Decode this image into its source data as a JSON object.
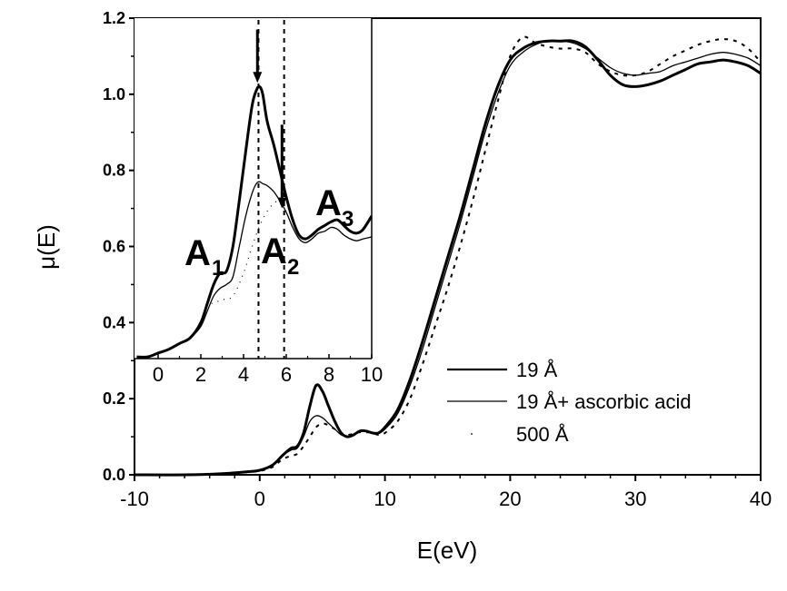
{
  "chart_data": [
    {
      "id": "main",
      "type": "line",
      "title": "",
      "xlabel": "E(eV)",
      "ylabel": "μ(E)",
      "xlim": [
        -10,
        40
      ],
      "ylim": [
        0.0,
        1.2
      ],
      "xticks": [
        -10,
        0,
        10,
        20,
        30,
        40
      ],
      "xtick_labels": [
        "-10",
        "0",
        "10",
        "20",
        "30",
        "40"
      ],
      "yticks": [
        0.0,
        0.2,
        0.4,
        0.6,
        0.8,
        1.0,
        1.2
      ],
      "ytick_labels": [
        "0.0",
        "0.2",
        "0.4",
        "0.6",
        "0.8",
        "1.0",
        "1.2"
      ],
      "grid": false,
      "legend_position": "lower-center-right",
      "series": [
        {
          "name": "19 Å",
          "style": "thick-solid",
          "x": [
            -10,
            -6,
            -3,
            -1,
            0,
            1,
            1.8,
            2.5,
            3.0,
            3.5,
            4.0,
            4.5,
            5.0,
            5.5,
            6.0,
            6.5,
            7.0,
            7.5,
            8.0,
            8.5,
            9.0,
            9.5,
            10,
            11,
            12,
            13,
            14,
            15,
            16,
            17,
            18,
            19,
            20,
            21,
            22,
            23,
            24,
            25,
            26,
            27,
            28,
            29,
            30,
            31,
            32,
            33,
            34,
            35,
            36,
            37,
            38,
            39,
            40
          ],
          "y": [
            0.0,
            0.0,
            0.003,
            0.008,
            0.012,
            0.025,
            0.05,
            0.07,
            0.075,
            0.11,
            0.18,
            0.235,
            0.22,
            0.18,
            0.14,
            0.11,
            0.1,
            0.105,
            0.115,
            0.115,
            0.11,
            0.11,
            0.125,
            0.17,
            0.25,
            0.35,
            0.46,
            0.57,
            0.68,
            0.8,
            0.92,
            1.02,
            1.09,
            1.12,
            1.135,
            1.14,
            1.14,
            1.14,
            1.125,
            1.09,
            1.05,
            1.025,
            1.02,
            1.025,
            1.035,
            1.05,
            1.065,
            1.08,
            1.085,
            1.09,
            1.085,
            1.075,
            1.055
          ]
        },
        {
          "name": "19 Å+ ascorbic acid",
          "style": "thin-solid",
          "x": [
            -10,
            -6,
            -3,
            -1,
            0,
            1,
            1.8,
            2.5,
            3.0,
            3.5,
            4.0,
            4.5,
            5.0,
            5.5,
            6.0,
            6.5,
            7.0,
            7.5,
            8.0,
            8.5,
            9.0,
            9.5,
            10,
            11,
            12,
            13,
            14,
            15,
            16,
            17,
            18,
            19,
            20,
            21,
            22,
            23,
            24,
            25,
            26,
            27,
            28,
            29,
            30,
            31,
            32,
            33,
            34,
            35,
            36,
            37,
            38,
            39,
            40
          ],
          "y": [
            0.0,
            0.0,
            0.003,
            0.008,
            0.012,
            0.025,
            0.05,
            0.065,
            0.07,
            0.1,
            0.14,
            0.155,
            0.15,
            0.135,
            0.12,
            0.105,
            0.1,
            0.105,
            0.115,
            0.115,
            0.11,
            0.11,
            0.12,
            0.16,
            0.235,
            0.33,
            0.44,
            0.55,
            0.66,
            0.78,
            0.9,
            1.0,
            1.075,
            1.11,
            1.13,
            1.14,
            1.14,
            1.135,
            1.12,
            1.095,
            1.07,
            1.055,
            1.05,
            1.055,
            1.06,
            1.075,
            1.085,
            1.095,
            1.105,
            1.11,
            1.105,
            1.095,
            1.075
          ]
        },
        {
          "name": "500 Å",
          "style": "dotted",
          "x": [
            -10,
            -6,
            -3,
            -1,
            0,
            1,
            1.8,
            2.5,
            3.0,
            3.5,
            4.0,
            4.5,
            5.0,
            5.5,
            6.0,
            6.5,
            7.0,
            7.5,
            8.0,
            8.5,
            9.0,
            9.5,
            10,
            11,
            12,
            13,
            14,
            15,
            16,
            17,
            18,
            19,
            20,
            21,
            22,
            23,
            24,
            25,
            26,
            27,
            28,
            29,
            30,
            31,
            32,
            33,
            34,
            35,
            36,
            37,
            38,
            39,
            40
          ],
          "y": [
            0.0,
            0.0,
            0.003,
            0.007,
            0.01,
            0.02,
            0.04,
            0.05,
            0.055,
            0.075,
            0.1,
            0.125,
            0.135,
            0.13,
            0.12,
            0.11,
            0.105,
            0.108,
            0.112,
            0.112,
            0.11,
            0.105,
            0.11,
            0.14,
            0.2,
            0.29,
            0.39,
            0.49,
            0.6,
            0.72,
            0.85,
            0.98,
            1.1,
            1.15,
            1.135,
            1.125,
            1.12,
            1.12,
            1.11,
            1.08,
            1.06,
            1.05,
            1.05,
            1.06,
            1.08,
            1.1,
            1.115,
            1.13,
            1.14,
            1.145,
            1.14,
            1.12,
            1.085
          ]
        }
      ]
    },
    {
      "id": "inset",
      "type": "line",
      "title": "",
      "xlabel": "",
      "ylabel": "",
      "xlim": [
        -1,
        10
      ],
      "ylim": [
        0.305,
        1.2
      ],
      "xticks": [
        0,
        2,
        4,
        6,
        8,
        10
      ],
      "xtick_labels": [
        "0",
        "2",
        "4",
        "6",
        "8",
        "10"
      ],
      "grid": false,
      "annotations": [
        {
          "label": "A",
          "sub": "1",
          "x": 2.3,
          "y": 0.58
        },
        {
          "label": "A",
          "sub": "2",
          "x": 5.5,
          "y": 0.58
        },
        {
          "label": "A",
          "sub": "3",
          "x": 8.0,
          "y": 0.68
        }
      ],
      "vlines": [
        {
          "x": 4.7,
          "style": "dashed"
        },
        {
          "x": 5.9,
          "style": "dashed"
        }
      ],
      "arrows": [
        {
          "x": 4.65,
          "from_y": 1.17,
          "to_y": 1.03,
          "direction": "down"
        },
        {
          "x": 5.8,
          "from_y": 0.92,
          "to_y": 0.7,
          "direction": "down"
        }
      ],
      "series": [
        {
          "name": "19 Å",
          "style": "thick-solid",
          "x": [
            -1,
            -0.5,
            0,
            0.5,
            1.0,
            1.5,
            2.0,
            2.3,
            2.6,
            2.9,
            3.2,
            3.5,
            3.8,
            4.1,
            4.4,
            4.6,
            4.75,
            4.9,
            5.1,
            5.4,
            5.7,
            6.0,
            6.3,
            6.6,
            6.9,
            7.2,
            7.5,
            7.8,
            8.1,
            8.4,
            8.7,
            9.0,
            9.3,
            9.6,
            10
          ],
          "y": [
            0.31,
            0.31,
            0.32,
            0.33,
            0.345,
            0.36,
            0.4,
            0.45,
            0.5,
            0.53,
            0.535,
            0.6,
            0.72,
            0.85,
            0.97,
            1.01,
            1.02,
            1.0,
            0.93,
            0.87,
            0.8,
            0.73,
            0.67,
            0.63,
            0.62,
            0.63,
            0.645,
            0.655,
            0.665,
            0.67,
            0.655,
            0.64,
            0.635,
            0.645,
            0.68
          ]
        },
        {
          "name": "19 Å+ ascorbic acid",
          "style": "thin-solid",
          "x": [
            -1,
            -0.5,
            0,
            0.5,
            1.0,
            1.5,
            2.0,
            2.3,
            2.6,
            2.9,
            3.2,
            3.5,
            3.8,
            4.1,
            4.4,
            4.6,
            4.75,
            4.9,
            5.1,
            5.4,
            5.7,
            6.0,
            6.3,
            6.6,
            6.9,
            7.2,
            7.5,
            7.8,
            8.1,
            8.4,
            8.7,
            9.0,
            9.3,
            9.6,
            10
          ],
          "y": [
            0.31,
            0.31,
            0.32,
            0.33,
            0.345,
            0.36,
            0.39,
            0.43,
            0.47,
            0.49,
            0.5,
            0.52,
            0.6,
            0.68,
            0.74,
            0.765,
            0.77,
            0.765,
            0.76,
            0.745,
            0.72,
            0.69,
            0.65,
            0.62,
            0.61,
            0.62,
            0.635,
            0.64,
            0.65,
            0.645,
            0.63,
            0.62,
            0.615,
            0.62,
            0.625
          ]
        },
        {
          "name": "500 Å",
          "style": "dotted",
          "x": [
            2.5,
            3.0,
            3.5,
            4.0,
            4.4,
            4.8,
            5.2,
            5.6,
            6.0
          ],
          "y": [
            0.45,
            0.46,
            0.47,
            0.53,
            0.6,
            0.66,
            0.7,
            0.72,
            0.72
          ]
        }
      ]
    }
  ],
  "legend": {
    "items": [
      {
        "label": "19 Å",
        "style": "thick-solid"
      },
      {
        "label": "19 Å+ ascorbic acid",
        "style": "thin-solid"
      },
      {
        "label": "500 Å",
        "style": "dotted"
      }
    ]
  },
  "axes": {
    "xlabel": "E(eV)",
    "ylabel": "μ(E)"
  },
  "inset_annotations": {
    "a1": {
      "main": "A",
      "sub": "1"
    },
    "a2": {
      "main": "A",
      "sub": "2"
    },
    "a3": {
      "main": "A",
      "sub": "3"
    }
  },
  "colors": {
    "line": "#000000",
    "background": "#ffffff"
  }
}
